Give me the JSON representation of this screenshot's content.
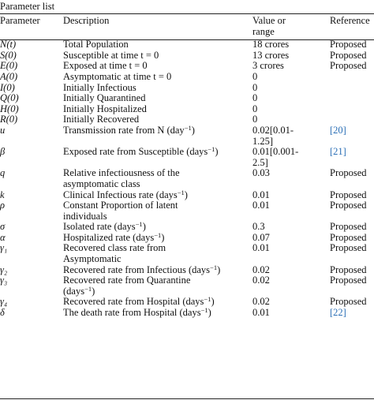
{
  "caption": "Parameter list",
  "headers": {
    "parameter": "Parameter",
    "description": "Description",
    "value": [
      "Value or",
      "range"
    ],
    "reference": "Reference"
  },
  "rows": [
    {
      "param": "N(t)",
      "desc": [
        "Total Population"
      ],
      "value": [
        "18 crores"
      ],
      "ref": "Proposed",
      "link": false
    },
    {
      "param": "S(0)",
      "desc": [
        "Susceptible at time t = 0"
      ],
      "value": [
        "13 crores"
      ],
      "ref": "Proposed",
      "link": false
    },
    {
      "param": "E(0)",
      "desc": [
        "Exposed at time t = 0"
      ],
      "value": [
        "3 crores"
      ],
      "ref": "Proposed",
      "link": false
    },
    {
      "param": "A(0)",
      "desc": [
        "Asymptomatic at time t = 0"
      ],
      "value": [
        "0"
      ],
      "ref": "",
      "link": false
    },
    {
      "param": "I(0)",
      "desc": [
        "Initially Infectious"
      ],
      "value": [
        "0"
      ],
      "ref": "",
      "link": false
    },
    {
      "param": "Q(0)",
      "desc": [
        "Initially Quarantined"
      ],
      "value": [
        "0"
      ],
      "ref": "",
      "link": false
    },
    {
      "param": "H(0)",
      "desc": [
        "Initially Hospitalized"
      ],
      "value": [
        "0"
      ],
      "ref": "",
      "link": false
    },
    {
      "param": "R(0)",
      "desc": [
        "Initially Recovered"
      ],
      "value": [
        "0"
      ],
      "ref": "",
      "link": false
    },
    {
      "param": "u",
      "desc": [
        "Transmission rate from N (day⁻¹)"
      ],
      "value": [
        "0.02[0.01-",
        "1.25]"
      ],
      "ref": "[20]",
      "link": true
    },
    {
      "param": "β",
      "desc": [
        "Exposed rate from Susceptible (days⁻¹)"
      ],
      "value": [
        "0.01[0.001-",
        "2.5]"
      ],
      "ref": "[21]",
      "link": true
    },
    {
      "param": "q",
      "desc": [
        "Relative infectiousness of the",
        "asymptomatic class"
      ],
      "value": [
        "0.03"
      ],
      "ref": "Proposed",
      "link": false
    },
    {
      "param": "k",
      "desc": [
        "Clinical Infectious rate (days⁻¹)"
      ],
      "value": [
        "0.01"
      ],
      "ref": "Proposed",
      "link": false
    },
    {
      "param": "ρ",
      "desc": [
        "Constant Proportion of latent",
        "individuals"
      ],
      "value": [
        "0.01"
      ],
      "ref": "Proposed",
      "link": false
    },
    {
      "param": "σ",
      "desc": [
        "Isolated rate (days⁻¹)"
      ],
      "value": [
        "0.3"
      ],
      "ref": "Proposed",
      "link": false
    },
    {
      "param": "α",
      "desc": [
        "Hospitalized rate (days⁻¹)"
      ],
      "value": [
        "0.07"
      ],
      "ref": "Proposed",
      "link": false
    },
    {
      "param": "γ₁",
      "desc": [
        "Recovered class rate from",
        "Asymptomatic"
      ],
      "value": [
        "0.01"
      ],
      "ref": "Proposed",
      "link": false
    },
    {
      "param": "γ₂",
      "desc": [
        "Recovered rate from Infectious (days⁻¹)"
      ],
      "value": [
        "0.02"
      ],
      "ref": "Proposed",
      "link": false
    },
    {
      "param": "γ₃",
      "desc": [
        "Recovered rate from Quarantine",
        "(days⁻¹)"
      ],
      "value": [
        "0.02"
      ],
      "ref": "Proposed",
      "link": false
    },
    {
      "param": "γ₄",
      "desc": [
        "Recovered rate from Hospital (days⁻¹)"
      ],
      "value": [
        "0.02"
      ],
      "ref": "Proposed",
      "link": false
    },
    {
      "param": "δ",
      "desc": [
        "The death rate from Hospital (days⁻¹)"
      ],
      "value": [
        "0.01"
      ],
      "ref": "[22]",
      "link": true
    }
  ],
  "colors": {
    "link": "#2b6fb6",
    "rule": "#222222",
    "text": "#111111"
  }
}
